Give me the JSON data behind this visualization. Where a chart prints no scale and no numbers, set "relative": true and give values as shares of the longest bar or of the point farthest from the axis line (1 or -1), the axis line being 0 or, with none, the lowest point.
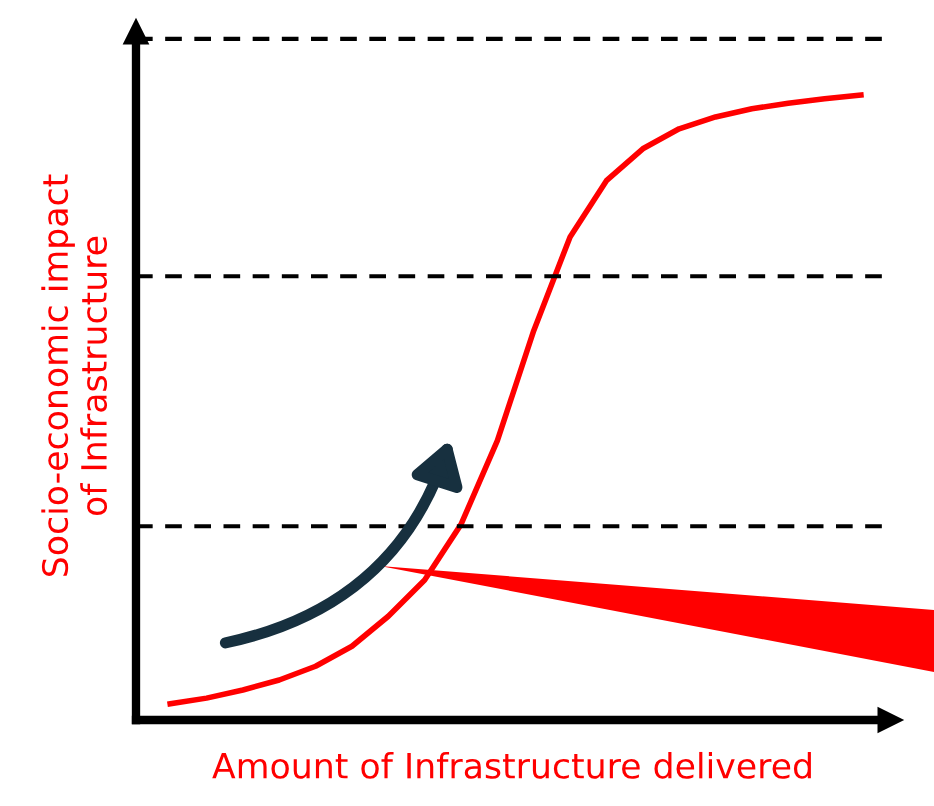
{
  "chart_data": {
    "type": "line",
    "relative": true,
    "xlabel": "Amount of Infrastructure delivered",
    "ylabel": "Socio-economic impact\nof Infrastructure",
    "categories": [
      null,
      null,
      null,
      null,
      null,
      null,
      null,
      null,
      null,
      null,
      null,
      null,
      null,
      null,
      null,
      null,
      null,
      null,
      null,
      null
    ],
    "series": [
      {
        "color": "#ff0000",
        "values": [
          0.026,
          0.035,
          0.048,
          0.064,
          0.086,
          0.118,
          0.166,
          0.224,
          0.313,
          0.447,
          0.623,
          0.773,
          0.863,
          0.914,
          0.946,
          0.965,
          0.978,
          0.987,
          0.994,
          1.0
        ]
      }
    ],
    "ref_lines": [
      {
        "axis": "y",
        "value": 1.09,
        "color": "#000000",
        "line_style": "dashed"
      },
      {
        "axis": "y",
        "value": 0.71,
        "color": "#000000",
        "line_style": "dashed"
      },
      {
        "axis": "y",
        "value": 0.31,
        "color": "#000000",
        "line_style": "dashed"
      }
    ],
    "grid": false,
    "legend": false,
    "marker": "none",
    "line_style": "solid"
  }
}
